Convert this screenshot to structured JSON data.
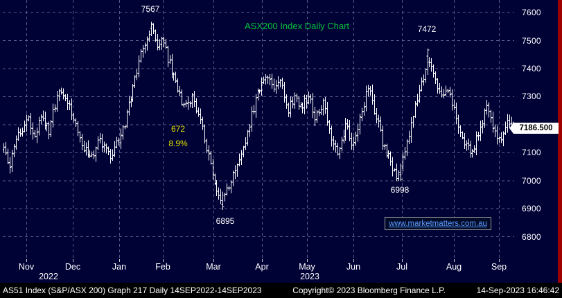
{
  "title": "ASX200 Index Daily Chart",
  "last_price": "7186.500",
  "link_text": "www.marketmatters.com.au",
  "status_bar": {
    "left": "AS51 Index (S&P/ASX 200) Graph 217  Daily 14SEP2022-14SEP2023",
    "copyright": "Copyright© 2023 Bloomberg Finance L.P.",
    "timestamp": "14-Sep-2023 16:46:42"
  },
  "colors": {
    "background": "#000135",
    "grid": "#5a5a88",
    "bars": "#ffffff",
    "title_green": "#00c33c",
    "annotation_white": "#ffffff",
    "annotation_yellow": "#e0e000",
    "link_blue": "#5e9bff",
    "price_tag_bg": "#ffffff",
    "price_tag_text": "#000000",
    "right_strip": "#9e0000"
  },
  "y_axis": {
    "grid_values": [
      7600,
      7500,
      7400,
      7300,
      7200,
      7100,
      7000,
      6900,
      6800
    ],
    "labels": [
      {
        "text": "7600",
        "value": 7600
      },
      {
        "text": "7500",
        "value": 7500
      },
      {
        "text": "7400",
        "value": 7400
      },
      {
        "text": "7300",
        "value": 7300
      },
      {
        "text": "7100",
        "value": 7100
      },
      {
        "text": "7000",
        "value": 7000
      },
      {
        "text": "6900",
        "value": 6900
      },
      {
        "text": "6800",
        "value": 6800
      }
    ]
  },
  "x_axis": {
    "months": [
      {
        "label": "Nov",
        "t": 0.046
      },
      {
        "label": "Dec",
        "t": 0.137
      },
      {
        "label": "Jan",
        "t": 0.228
      },
      {
        "label": "Feb",
        "t": 0.313
      },
      {
        "label": "Mar",
        "t": 0.412
      },
      {
        "label": "Apr",
        "t": 0.507
      },
      {
        "label": "May",
        "t": 0.595
      },
      {
        "label": "Jun",
        "t": 0.686
      },
      {
        "label": "Jul",
        "t": 0.78
      },
      {
        "label": "Aug",
        "t": 0.882
      },
      {
        "label": "Sep",
        "t": 0.97
      }
    ],
    "years": [
      {
        "label": "2022",
        "t": 0.09
      },
      {
        "label": "2023",
        "t": 0.6
      }
    ]
  },
  "annotations": [
    {
      "text": "7567",
      "color": "#ffffff",
      "t": 0.289,
      "price": 7612
    },
    {
      "text": "7472",
      "color": "#ffffff",
      "t": 0.829,
      "price": 7542
    },
    {
      "text": "672",
      "color": "#e0e000",
      "t": 0.343,
      "price": 7185
    },
    {
      "text": "8.9%",
      "color": "#e0e000",
      "t": 0.343,
      "price": 7133
    },
    {
      "text": "6998",
      "color": "#ffffff",
      "t": 0.776,
      "price": 6968
    },
    {
      "text": "6895",
      "color": "#ffffff",
      "t": 0.435,
      "price": 6856
    }
  ],
  "chart_data": {
    "type": "ohlc-bar",
    "title": "ASX200 Index Daily Chart",
    "ticker": "AS51 Index (S&P/ASX 200)",
    "period": "Daily 14SEP2022-14SEP2023",
    "x_months": [
      "Nov",
      "Dec",
      "Jan",
      "Feb",
      "Mar",
      "Apr",
      "May",
      "Jun",
      "Jul",
      "Aug",
      "Sep"
    ],
    "y_range": [
      6720,
      7645
    ],
    "y_ticks": [
      6800,
      6900,
      7000,
      7100,
      7200,
      7300,
      7400,
      7500,
      7600
    ],
    "last_price": 7186.5,
    "drawdown_annotation": {
      "points": 672,
      "percent": "8.9%"
    },
    "key_points": [
      {
        "label": "7567",
        "price": 7567,
        "kind": "high",
        "t": 0.29
      },
      {
        "label": "6895",
        "price": 6895,
        "kind": "low",
        "t": 0.43
      },
      {
        "label": "6998",
        "price": 6998,
        "kind": "low",
        "t": 0.776
      },
      {
        "label": "7472",
        "price": 7472,
        "kind": "high",
        "t": 0.831
      }
    ],
    "bar_count": 250,
    "trend_anchors": [
      [
        0.0,
        7130
      ],
      [
        0.012,
        7050
      ],
      [
        0.03,
        7160
      ],
      [
        0.048,
        7230
      ],
      [
        0.06,
        7150
      ],
      [
        0.075,
        7240
      ],
      [
        0.09,
        7180
      ],
      [
        0.105,
        7300
      ],
      [
        0.12,
        7320
      ],
      [
        0.135,
        7230
      ],
      [
        0.155,
        7130
      ],
      [
        0.175,
        7080
      ],
      [
        0.19,
        7150
      ],
      [
        0.21,
        7080
      ],
      [
        0.235,
        7180
      ],
      [
        0.26,
        7380
      ],
      [
        0.278,
        7500
      ],
      [
        0.29,
        7545
      ],
      [
        0.302,
        7480
      ],
      [
        0.312,
        7500
      ],
      [
        0.325,
        7420
      ],
      [
        0.34,
        7330
      ],
      [
        0.355,
        7260
      ],
      [
        0.37,
        7290
      ],
      [
        0.385,
        7240
      ],
      [
        0.398,
        7120
      ],
      [
        0.412,
        7000
      ],
      [
        0.426,
        6925
      ],
      [
        0.44,
        6975
      ],
      [
        0.455,
        7040
      ],
      [
        0.47,
        7110
      ],
      [
        0.485,
        7230
      ],
      [
        0.5,
        7320
      ],
      [
        0.516,
        7380
      ],
      [
        0.53,
        7320
      ],
      [
        0.542,
        7370
      ],
      [
        0.556,
        7250
      ],
      [
        0.57,
        7300
      ],
      [
        0.584,
        7260
      ],
      [
        0.598,
        7300
      ],
      [
        0.612,
        7220
      ],
      [
        0.626,
        7280
      ],
      [
        0.64,
        7170
      ],
      [
        0.655,
        7100
      ],
      [
        0.67,
        7200
      ],
      [
        0.684,
        7130
      ],
      [
        0.7,
        7240
      ],
      [
        0.714,
        7330
      ],
      [
        0.728,
        7240
      ],
      [
        0.742,
        7140
      ],
      [
        0.756,
        7070
      ],
      [
        0.77,
        7020
      ],
      [
        0.78,
        7060
      ],
      [
        0.792,
        7150
      ],
      [
        0.806,
        7260
      ],
      [
        0.82,
        7360
      ],
      [
        0.831,
        7440
      ],
      [
        0.843,
        7390
      ],
      [
        0.856,
        7300
      ],
      [
        0.868,
        7340
      ],
      [
        0.88,
        7260
      ],
      [
        0.892,
        7180
      ],
      [
        0.905,
        7130
      ],
      [
        0.918,
        7100
      ],
      [
        0.932,
        7180
      ],
      [
        0.945,
        7260
      ],
      [
        0.958,
        7200
      ],
      [
        0.972,
        7140
      ],
      [
        0.985,
        7210
      ],
      [
        1.0,
        7190
      ]
    ]
  }
}
